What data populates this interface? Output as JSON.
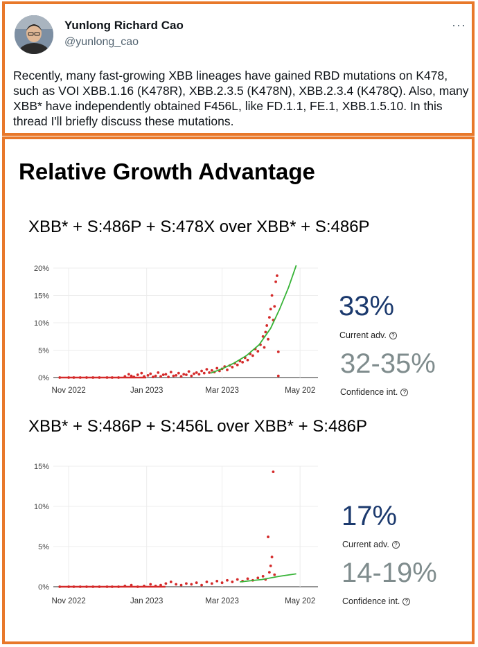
{
  "tweet": {
    "author_name": "Yunlong Richard Cao",
    "author_handle": "@yunlong_cao",
    "more_label": "···",
    "text": "Recently, many fast-growing XBB lineages have gained RBD mutations on K478, such as VOI XBB.1.16 (K478R), XBB.2.3.5 (K478N), XBB.2.3.4 (K478Q). Also, many XBB* have independently obtained F456L, like FD.1.1, FE.1, XBB.1.5.10. In this thread I'll briefly discuss these mutations."
  },
  "figure": {
    "title": "Relative Growth Advantage"
  },
  "colors": {
    "accent_border": "#e8782a",
    "points": "#d42a2a",
    "fit_line": "#36b336",
    "advantage_text": "#1c3a6e",
    "ci_text": "#7f8c8d"
  },
  "chart_data": [
    {
      "type": "scatter",
      "title": "XBB* + S:486P + S:478X over XBB* + S:486P",
      "x_ticks": [
        "Nov 2022",
        "Jan 2023",
        "Mar 2023",
        "May 202"
      ],
      "y_ticks": [
        "0%",
        "5%",
        "10%",
        "15%",
        "20%"
      ],
      "ylim": [
        0,
        20
      ],
      "xlim": [
        "2022-10-20",
        "2023-05-15"
      ],
      "grid": true,
      "current_adv": "33%",
      "current_adv_label": "Current adv.",
      "confidence_int": "32-35%",
      "confidence_int_label": "Confidence int.",
      "points": [
        [
          "2022-10-25",
          0
        ],
        [
          "2022-11-01",
          0
        ],
        [
          "2022-11-05",
          0
        ],
        [
          "2022-11-10",
          0
        ],
        [
          "2022-11-15",
          0
        ],
        [
          "2022-11-20",
          0
        ],
        [
          "2022-11-25",
          0
        ],
        [
          "2022-12-01",
          0
        ],
        [
          "2022-12-05",
          0
        ],
        [
          "2022-12-10",
          0
        ],
        [
          "2022-12-15",
          0.2
        ],
        [
          "2022-12-18",
          0.6
        ],
        [
          "2022-12-20",
          0.3
        ],
        [
          "2022-12-22",
          0.1
        ],
        [
          "2022-12-25",
          0.5
        ],
        [
          "2022-12-28",
          0.8
        ],
        [
          "2022-12-30",
          0.2
        ],
        [
          "2023-01-02",
          0.4
        ],
        [
          "2023-01-04",
          0.7
        ],
        [
          "2023-01-06",
          0.1
        ],
        [
          "2023-01-08",
          0.3
        ],
        [
          "2023-01-10",
          0.9
        ],
        [
          "2023-01-12",
          0.2
        ],
        [
          "2023-01-14",
          0.5
        ],
        [
          "2023-01-16",
          0.6
        ],
        [
          "2023-01-18",
          0.1
        ],
        [
          "2023-01-20",
          1.0
        ],
        [
          "2023-01-22",
          0.3
        ],
        [
          "2023-01-24",
          0.4
        ],
        [
          "2023-01-26",
          0.8
        ],
        [
          "2023-01-28",
          0.2
        ],
        [
          "2023-01-30",
          0.6
        ],
        [
          "2023-02-01",
          0.5
        ],
        [
          "2023-02-03",
          1.1
        ],
        [
          "2023-02-05",
          0.3
        ],
        [
          "2023-02-07",
          0.7
        ],
        [
          "2023-02-09",
          0.9
        ],
        [
          "2023-02-11",
          0.6
        ],
        [
          "2023-02-13",
          1.2
        ],
        [
          "2023-02-15",
          0.8
        ],
        [
          "2023-02-17",
          1.5
        ],
        [
          "2023-02-19",
          0.9
        ],
        [
          "2023-02-21",
          1.3
        ],
        [
          "2023-02-23",
          1.0
        ],
        [
          "2023-02-25",
          1.7
        ],
        [
          "2023-02-27",
          1.2
        ],
        [
          "2023-03-01",
          1.6
        ],
        [
          "2023-03-03",
          2.0
        ],
        [
          "2023-03-05",
          1.4
        ],
        [
          "2023-03-07",
          2.2
        ],
        [
          "2023-03-09",
          1.9
        ],
        [
          "2023-03-11",
          2.6
        ],
        [
          "2023-03-13",
          2.3
        ],
        [
          "2023-03-15",
          3.0
        ],
        [
          "2023-03-17",
          2.8
        ],
        [
          "2023-03-19",
          3.6
        ],
        [
          "2023-03-21",
          3.2
        ],
        [
          "2023-03-23",
          4.3
        ],
        [
          "2023-03-25",
          4.0
        ],
        [
          "2023-03-27",
          5.2
        ],
        [
          "2023-03-29",
          4.8
        ],
        [
          "2023-03-31",
          6.0
        ],
        [
          "2023-04-02",
          7.5
        ],
        [
          "2023-04-03",
          5.5
        ],
        [
          "2023-04-04",
          8.3
        ],
        [
          "2023-04-05",
          9.5
        ],
        [
          "2023-04-06",
          7.0
        ],
        [
          "2023-04-07",
          11.0
        ],
        [
          "2023-04-08",
          12.5
        ],
        [
          "2023-04-09",
          15.0
        ],
        [
          "2023-04-10",
          10.5
        ],
        [
          "2023-04-11",
          13.0
        ],
        [
          "2023-04-12",
          17.5
        ],
        [
          "2023-04-13",
          18.6
        ],
        [
          "2023-04-14",
          4.7
        ],
        [
          "2023-04-14",
          0.3
        ]
      ],
      "fit": [
        [
          "2023-02-20",
          0.8
        ],
        [
          "2023-03-01",
          1.6
        ],
        [
          "2023-03-10",
          2.6
        ],
        [
          "2023-03-20",
          4.0
        ],
        [
          "2023-03-30",
          6.0
        ],
        [
          "2023-04-08",
          9.0
        ],
        [
          "2023-04-15",
          12.5
        ],
        [
          "2023-04-22",
          16.5
        ],
        [
          "2023-04-28",
          20.5
        ]
      ]
    },
    {
      "type": "scatter",
      "title": "XBB* + S:486P + S:456L over XBB* + S:486P",
      "x_ticks": [
        "Nov 2022",
        "Jan 2023",
        "Mar 2023",
        "May 202"
      ],
      "y_ticks": [
        "0%",
        "5%",
        "10%",
        "15%"
      ],
      "ylim": [
        0,
        15
      ],
      "xlim": [
        "2022-10-20",
        "2023-05-15"
      ],
      "grid": true,
      "current_adv": "17%",
      "current_adv_label": "Current adv.",
      "confidence_int": "14-19%",
      "confidence_int_label": "Confidence int.",
      "points": [
        [
          "2022-10-25",
          0
        ],
        [
          "2022-11-01",
          0
        ],
        [
          "2022-11-05",
          0
        ],
        [
          "2022-11-10",
          0
        ],
        [
          "2022-11-15",
          0
        ],
        [
          "2022-11-20",
          0
        ],
        [
          "2022-11-25",
          0
        ],
        [
          "2022-12-01",
          0
        ],
        [
          "2022-12-05",
          0
        ],
        [
          "2022-12-10",
          0
        ],
        [
          "2022-12-15",
          0.1
        ],
        [
          "2022-12-20",
          0.2
        ],
        [
          "2022-12-25",
          0
        ],
        [
          "2022-12-30",
          0.1
        ],
        [
          "2023-01-04",
          0.3
        ],
        [
          "2023-01-08",
          0.1
        ],
        [
          "2023-01-12",
          0.2
        ],
        [
          "2023-01-16",
          0.4
        ],
        [
          "2023-01-20",
          0.6
        ],
        [
          "2023-01-24",
          0.3
        ],
        [
          "2023-01-28",
          0.2
        ],
        [
          "2023-02-01",
          0.4
        ],
        [
          "2023-02-05",
          0.3
        ],
        [
          "2023-02-09",
          0.5
        ],
        [
          "2023-02-13",
          0.2
        ],
        [
          "2023-02-17",
          0.6
        ],
        [
          "2023-02-21",
          0.4
        ],
        [
          "2023-02-25",
          0.7
        ],
        [
          "2023-03-01",
          0.5
        ],
        [
          "2023-03-05",
          0.8
        ],
        [
          "2023-03-09",
          0.6
        ],
        [
          "2023-03-13",
          0.9
        ],
        [
          "2023-03-17",
          0.7
        ],
        [
          "2023-03-21",
          1.0
        ],
        [
          "2023-03-25",
          0.8
        ],
        [
          "2023-03-29",
          1.1
        ],
        [
          "2023-04-02",
          1.3
        ],
        [
          "2023-04-04",
          0.9
        ],
        [
          "2023-04-06",
          6.2
        ],
        [
          "2023-04-07",
          1.8
        ],
        [
          "2023-04-08",
          2.6
        ],
        [
          "2023-04-09",
          3.7
        ],
        [
          "2023-04-10",
          14.3
        ],
        [
          "2023-04-11",
          1.5
        ]
      ],
      "fit": [
        [
          "2023-03-15",
          0.6
        ],
        [
          "2023-04-01",
          0.9
        ],
        [
          "2023-04-15",
          1.3
        ],
        [
          "2023-04-28",
          1.6
        ]
      ]
    }
  ]
}
